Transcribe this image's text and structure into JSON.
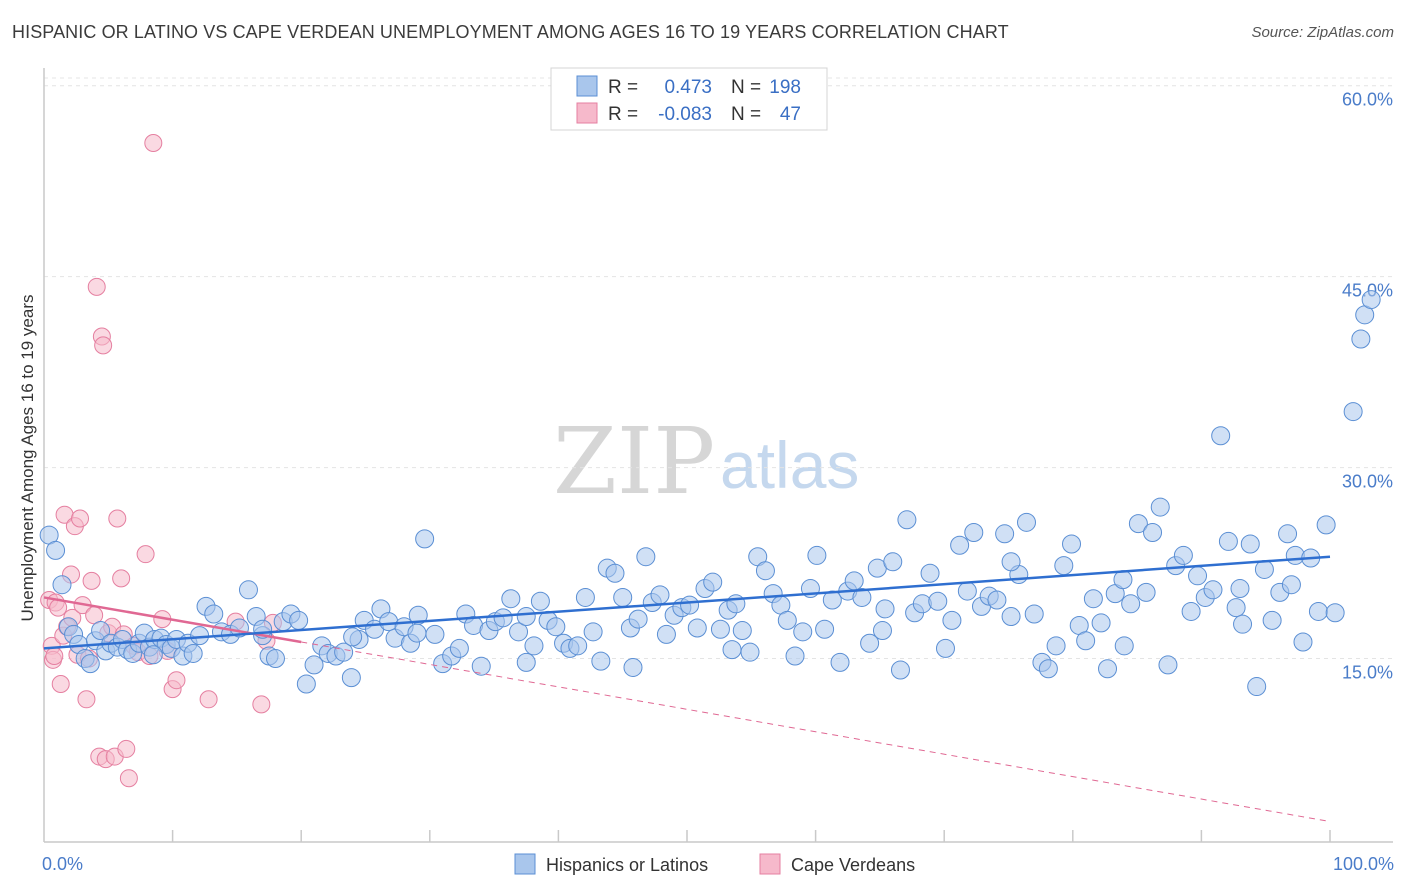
{
  "header": {
    "title": "HISPANIC OR LATINO VS CAPE VERDEAN UNEMPLOYMENT AMONG AGES 16 TO 19 YEARS CORRELATION CHART",
    "source": "Source: ZipAtlas.com"
  },
  "watermark": {
    "zip": "ZIP",
    "atlas": "atlas"
  },
  "legend_box": {
    "rows": [
      {
        "r_label": "R =",
        "r_value": "0.473",
        "n_label": "N =",
        "n_value": "198",
        "color": "#a9c6ec",
        "stroke": "#5b8fd4"
      },
      {
        "r_label": "R =",
        "r_value": "-0.083",
        "n_label": "N =",
        "n_value": "47",
        "color": "#f6b9cb",
        "stroke": "#e57fa0"
      }
    ]
  },
  "bottom_legend": [
    {
      "label": "Hispanics or Latinos",
      "color": "#a9c6ec",
      "stroke": "#5b8fd4"
    },
    {
      "label": "Cape Verdeans",
      "color": "#f6b9cb",
      "stroke": "#e57fa0"
    }
  ],
  "chart_data": {
    "type": "scatter",
    "title": "HISPANIC OR LATINO VS CAPE VERDEAN UNEMPLOYMENT AMONG AGES 16 TO 19 YEARS CORRELATION CHART",
    "xlabel": "",
    "ylabel": "Unemployment Among Ages 16 to 19 years",
    "xlim": [
      0,
      100
    ],
    "ylim": [
      0,
      62
    ],
    "x_tick_labels": [
      "0.0%",
      "100.0%"
    ],
    "y_ticks": [
      15,
      30,
      45,
      60
    ],
    "y_tick_labels": [
      "15.0%",
      "30.0%",
      "45.0%",
      "60.0%"
    ],
    "series": [
      {
        "name": "Hispanics or Latinos",
        "color": "#a9c6ec",
        "stroke": "#5b8fd4",
        "trend": {
          "x": [
            0,
            100
          ],
          "y": [
            15.8,
            23.0
          ],
          "color": "#2f6fd0",
          "style": "solid"
        },
        "points": [
          [
            0.4,
            24.7
          ],
          [
            0.9,
            23.5
          ],
          [
            1.4,
            20.8
          ],
          [
            1.9,
            17.5
          ],
          [
            2.3,
            16.9
          ],
          [
            2.7,
            16.1
          ],
          [
            3.2,
            15.0
          ],
          [
            3.6,
            14.6
          ],
          [
            4.0,
            16.4
          ],
          [
            4.4,
            17.2
          ],
          [
            4.8,
            15.6
          ],
          [
            5.2,
            16.2
          ],
          [
            5.7,
            15.9
          ],
          [
            6.1,
            16.5
          ],
          [
            6.5,
            15.7
          ],
          [
            6.9,
            15.4
          ],
          [
            7.4,
            16.2
          ],
          [
            7.8,
            17.0
          ],
          [
            8.2,
            15.9
          ],
          [
            8.6,
            16.5
          ],
          [
            9.1,
            16.6
          ],
          [
            9.5,
            16.1
          ],
          [
            9.9,
            15.8
          ],
          [
            10.3,
            16.5
          ],
          [
            10.8,
            15.2
          ],
          [
            11.2,
            16.2
          ],
          [
            11.6,
            15.4
          ],
          [
            12.1,
            16.8
          ],
          [
            12.6,
            19.1
          ],
          [
            13.2,
            18.5
          ],
          [
            13.8,
            17.1
          ],
          [
            14.5,
            16.9
          ],
          [
            15.2,
            17.4
          ],
          [
            15.9,
            20.4
          ],
          [
            16.5,
            18.3
          ],
          [
            17.0,
            16.8
          ],
          [
            17.5,
            15.2
          ],
          [
            18.0,
            15.0
          ],
          [
            18.6,
            17.9
          ],
          [
            19.2,
            18.5
          ],
          [
            19.8,
            18.0
          ],
          [
            20.4,
            13.0
          ],
          [
            21.0,
            14.5
          ],
          [
            21.6,
            16.0
          ],
          [
            22.1,
            15.4
          ],
          [
            22.7,
            15.2
          ],
          [
            23.3,
            15.5
          ],
          [
            23.9,
            13.5
          ],
          [
            24.5,
            16.5
          ],
          [
            24.9,
            18.0
          ],
          [
            25.7,
            17.3
          ],
          [
            26.2,
            18.9
          ],
          [
            26.8,
            17.9
          ],
          [
            27.3,
            16.6
          ],
          [
            28.0,
            17.5
          ],
          [
            28.5,
            16.2
          ],
          [
            29.0,
            17.0
          ],
          [
            29.6,
            24.4
          ],
          [
            29.1,
            18.4
          ],
          [
            30.4,
            16.9
          ],
          [
            31.0,
            14.6
          ],
          [
            31.7,
            15.2
          ],
          [
            32.3,
            15.8
          ],
          [
            32.8,
            18.5
          ],
          [
            33.4,
            17.6
          ],
          [
            34.0,
            14.4
          ],
          [
            34.6,
            17.2
          ],
          [
            35.1,
            17.9
          ],
          [
            35.7,
            18.2
          ],
          [
            36.3,
            19.7
          ],
          [
            36.9,
            17.1
          ],
          [
            37.5,
            18.3
          ],
          [
            38.1,
            16.0
          ],
          [
            38.6,
            19.5
          ],
          [
            39.2,
            18.0
          ],
          [
            39.8,
            17.5
          ],
          [
            40.4,
            16.2
          ],
          [
            40.9,
            15.8
          ],
          [
            41.5,
            16.0
          ],
          [
            42.1,
            19.8
          ],
          [
            42.7,
            17.1
          ],
          [
            43.3,
            14.8
          ],
          [
            43.8,
            22.1
          ],
          [
            44.4,
            21.7
          ],
          [
            45.0,
            19.8
          ],
          [
            45.6,
            17.4
          ],
          [
            46.2,
            18.1
          ],
          [
            46.8,
            23.0
          ],
          [
            47.3,
            19.4
          ],
          [
            47.9,
            20.0
          ],
          [
            48.4,
            16.9
          ],
          [
            49.0,
            18.4
          ],
          [
            49.6,
            19.0
          ],
          [
            50.2,
            19.2
          ],
          [
            50.8,
            17.4
          ],
          [
            51.4,
            20.5
          ],
          [
            52.0,
            21.0
          ],
          [
            52.6,
            17.3
          ],
          [
            53.2,
            18.8
          ],
          [
            53.8,
            19.3
          ],
          [
            54.3,
            17.2
          ],
          [
            54.9,
            15.5
          ],
          [
            55.5,
            23.0
          ],
          [
            56.1,
            21.9
          ],
          [
            56.7,
            20.1
          ],
          [
            57.3,
            19.2
          ],
          [
            57.8,
            18.0
          ],
          [
            58.4,
            15.2
          ],
          [
            59.0,
            17.1
          ],
          [
            59.6,
            20.5
          ],
          [
            60.1,
            23.1
          ],
          [
            60.7,
            17.3
          ],
          [
            61.3,
            19.6
          ],
          [
            61.9,
            14.7
          ],
          [
            62.5,
            20.3
          ],
          [
            63.0,
            21.1
          ],
          [
            63.6,
            19.8
          ],
          [
            64.2,
            16.2
          ],
          [
            64.8,
            22.1
          ],
          [
            65.4,
            18.9
          ],
          [
            66.0,
            22.6
          ],
          [
            66.6,
            14.1
          ],
          [
            67.1,
            25.9
          ],
          [
            67.7,
            18.6
          ],
          [
            68.3,
            19.3
          ],
          [
            68.9,
            21.7
          ],
          [
            69.5,
            19.5
          ],
          [
            70.1,
            15.8
          ],
          [
            70.6,
            18.0
          ],
          [
            71.2,
            23.9
          ],
          [
            71.8,
            20.3
          ],
          [
            72.3,
            24.9
          ],
          [
            72.9,
            19.1
          ],
          [
            73.5,
            19.9
          ],
          [
            74.1,
            19.6
          ],
          [
            74.7,
            24.8
          ],
          [
            75.2,
            18.3
          ],
          [
            75.8,
            21.6
          ],
          [
            76.4,
            25.7
          ],
          [
            77.0,
            18.5
          ],
          [
            77.6,
            14.7
          ],
          [
            78.1,
            14.2
          ],
          [
            78.7,
            16.0
          ],
          [
            79.3,
            22.3
          ],
          [
            79.9,
            24.0
          ],
          [
            80.5,
            17.6
          ],
          [
            81.0,
            16.4
          ],
          [
            81.6,
            19.7
          ],
          [
            82.2,
            17.8
          ],
          [
            82.7,
            14.2
          ],
          [
            83.3,
            20.1
          ],
          [
            83.9,
            21.2
          ],
          [
            84.5,
            19.3
          ],
          [
            85.1,
            25.6
          ],
          [
            85.7,
            20.2
          ],
          [
            86.2,
            24.9
          ],
          [
            86.8,
            26.9
          ],
          [
            87.4,
            14.5
          ],
          [
            88.0,
            22.3
          ],
          [
            88.6,
            23.1
          ],
          [
            89.2,
            18.7
          ],
          [
            89.7,
            21.5
          ],
          [
            90.3,
            19.8
          ],
          [
            90.9,
            20.4
          ],
          [
            91.5,
            32.5
          ],
          [
            92.1,
            24.2
          ],
          [
            92.7,
            19.0
          ],
          [
            93.2,
            17.7
          ],
          [
            93.8,
            24.0
          ],
          [
            94.3,
            12.8
          ],
          [
            94.9,
            22.0
          ],
          [
            95.5,
            18.0
          ],
          [
            96.1,
            20.2
          ],
          [
            96.7,
            24.8
          ],
          [
            97.3,
            23.1
          ],
          [
            97.9,
            16.3
          ],
          [
            98.5,
            22.9
          ],
          [
            99.1,
            18.7
          ],
          [
            99.7,
            25.5
          ],
          [
            100.4,
            18.6
          ],
          [
            97.0,
            20.8
          ],
          [
            101.8,
            34.4
          ],
          [
            102.4,
            40.1
          ],
          [
            102.7,
            42.0
          ],
          [
            103.2,
            43.2
          ],
          [
            17.0,
            17.3
          ],
          [
            24.0,
            16.7
          ],
          [
            37.5,
            14.7
          ],
          [
            45.8,
            14.3
          ],
          [
            53.5,
            15.7
          ],
          [
            65.2,
            17.2
          ],
          [
            75.2,
            22.6
          ],
          [
            84.0,
            16.0
          ],
          [
            93.0,
            20.5
          ],
          [
            8.5,
            15.3
          ]
        ]
      },
      {
        "name": "Cape Verdeans",
        "color": "#f6b9cb",
        "stroke": "#e57fa0",
        "trend": {
          "x": [
            0,
            20
          ],
          "y": [
            19.8,
            16.3
          ],
          "color": "#e06893",
          "style": "solid"
        },
        "trend_extended": {
          "x": [
            20,
            100
          ],
          "y": [
            16.3,
            2.2
          ],
          "color": "#e06893",
          "style": "dashed"
        },
        "points": [
          [
            0.4,
            19.6
          ],
          [
            0.6,
            16.0
          ],
          [
            0.7,
            14.9
          ],
          [
            0.8,
            15.2
          ],
          [
            0.9,
            19.4
          ],
          [
            1.1,
            19.0
          ],
          [
            1.3,
            13.0
          ],
          [
            1.5,
            16.8
          ],
          [
            1.8,
            17.5
          ],
          [
            1.6,
            26.3
          ],
          [
            2.1,
            21.6
          ],
          [
            2.2,
            18.2
          ],
          [
            2.4,
            25.4
          ],
          [
            2.6,
            15.3
          ],
          [
            2.8,
            26.0
          ],
          [
            3.0,
            19.2
          ],
          [
            3.3,
            11.8
          ],
          [
            3.5,
            15.0
          ],
          [
            3.7,
            21.1
          ],
          [
            3.9,
            18.4
          ],
          [
            4.1,
            44.2
          ],
          [
            4.3,
            7.3
          ],
          [
            4.5,
            40.3
          ],
          [
            4.6,
            39.6
          ],
          [
            4.8,
            7.1
          ],
          [
            5.0,
            17.0
          ],
          [
            5.3,
            17.5
          ],
          [
            5.5,
            7.3
          ],
          [
            5.7,
            26.0
          ],
          [
            6.0,
            21.3
          ],
          [
            6.2,
            16.9
          ],
          [
            6.4,
            7.9
          ],
          [
            6.6,
            5.6
          ],
          [
            7.0,
            16.0
          ],
          [
            7.3,
            15.5
          ],
          [
            7.9,
            23.2
          ],
          [
            8.2,
            15.2
          ],
          [
            8.5,
            55.5
          ],
          [
            9.2,
            18.1
          ],
          [
            9.6,
            15.6
          ],
          [
            10.0,
            12.6
          ],
          [
            10.3,
            13.3
          ],
          [
            12.8,
            11.8
          ],
          [
            14.9,
            17.9
          ],
          [
            16.9,
            11.4
          ],
          [
            17.3,
            16.4
          ],
          [
            17.8,
            17.8
          ]
        ]
      }
    ]
  }
}
